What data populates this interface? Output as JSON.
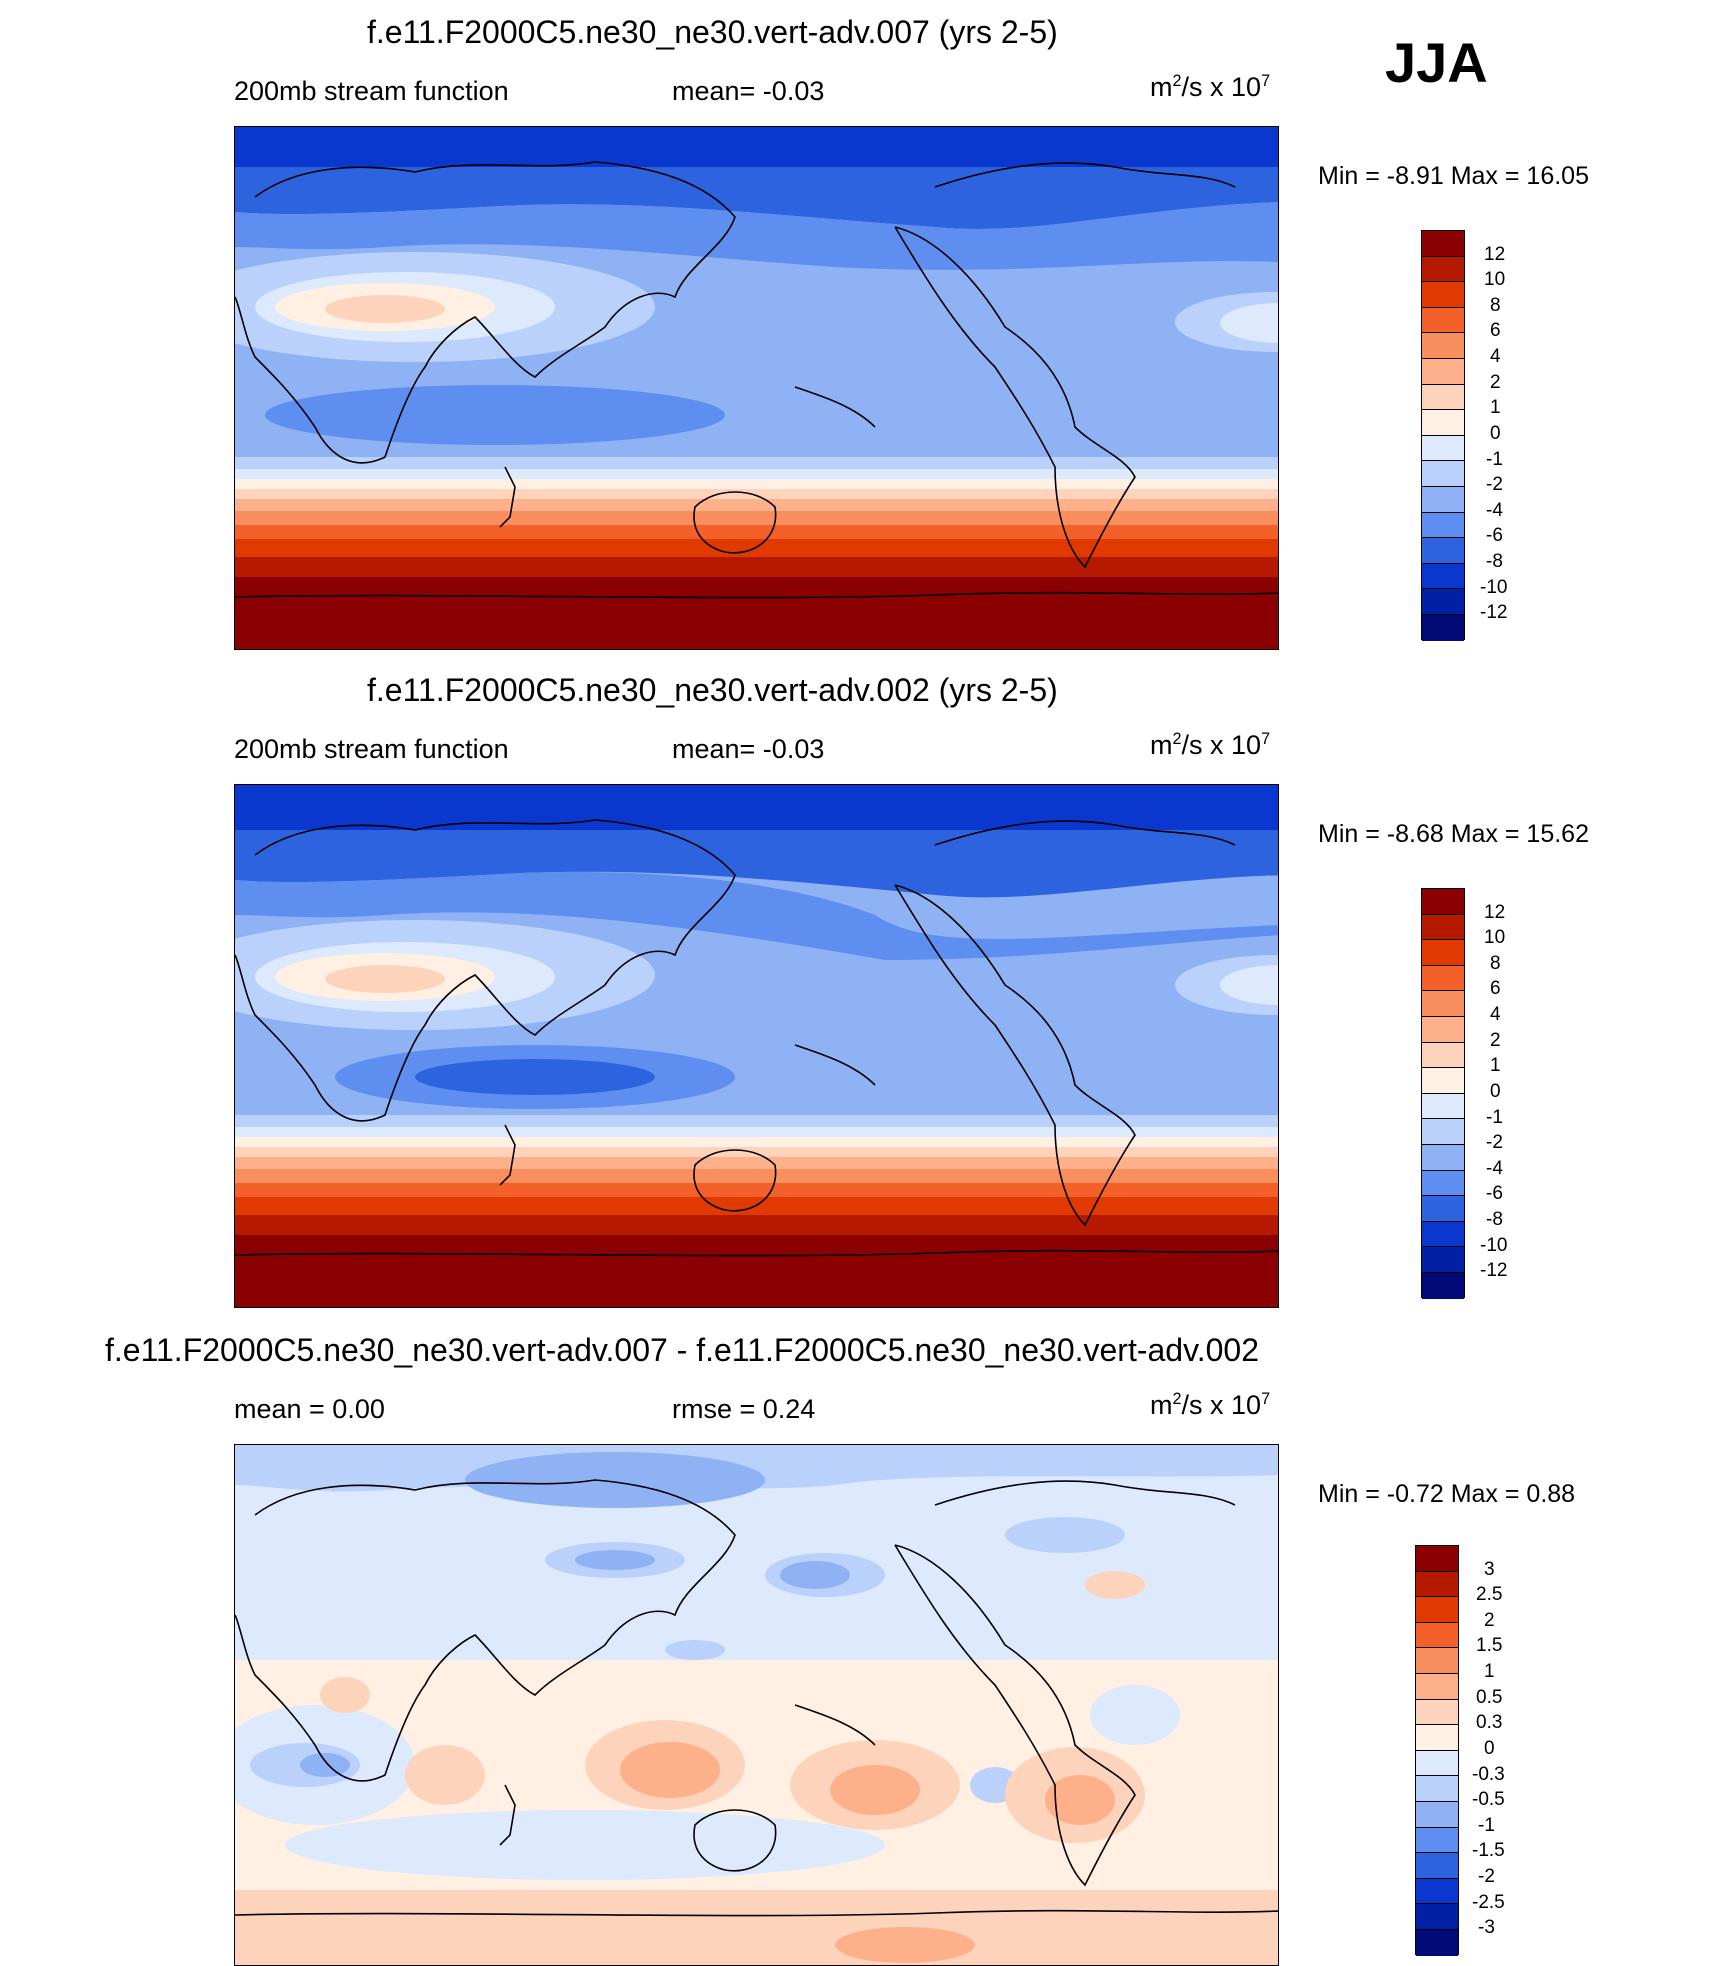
{
  "season": "JJA",
  "panels": [
    {
      "title": "f.e11.F2000C5.ne30_ne30.vert-adv.007 (yrs 2-5)",
      "left": "200mb stream function",
      "center": "mean=  -0.03",
      "units_base": "m",
      "units_exp": "2",
      "units_mid": "/s x 10",
      "units_pow": "7",
      "minmax": "Min =  -8.91 Max =  16.05",
      "levels": [
        "12",
        "10",
        "8",
        "6",
        "4",
        "2",
        "1",
        "0",
        "-1",
        "-2",
        "-4",
        "-6",
        "-8",
        "-10",
        "-12"
      ],
      "colors": [
        "#8b0000",
        "#b51a00",
        "#e03a00",
        "#f4602a",
        "#f98f5e",
        "#fdb08a",
        "#fdd4bb",
        "#fff0e3",
        "#dde9fd",
        "#b9d1fb",
        "#8fb2f5",
        "#5e8ff0",
        "#2e63e0",
        "#0a38cf",
        "#0020a5",
        "#000b78"
      ]
    },
    {
      "title": "f.e11.F2000C5.ne30_ne30.vert-adv.002 (yrs 2-5)",
      "left": "200mb stream function",
      "center": "mean=  -0.03",
      "units_base": "m",
      "units_exp": "2",
      "units_mid": "/s x 10",
      "units_pow": "7",
      "minmax": "Min =  -8.68 Max =  15.62",
      "levels": [
        "12",
        "10",
        "8",
        "6",
        "4",
        "2",
        "1",
        "0",
        "-1",
        "-2",
        "-4",
        "-6",
        "-8",
        "-10",
        "-12"
      ],
      "colors": [
        "#8b0000",
        "#b51a00",
        "#e03a00",
        "#f4602a",
        "#f98f5e",
        "#fdb08a",
        "#fdd4bb",
        "#fff0e3",
        "#dde9fd",
        "#b9d1fb",
        "#8fb2f5",
        "#5e8ff0",
        "#2e63e0",
        "#0a38cf",
        "#0020a5",
        "#000b78"
      ]
    },
    {
      "title": "f.e11.F2000C5.ne30_ne30.vert-adv.007 - f.e11.F2000C5.ne30_ne30.vert-adv.002",
      "left": "mean =   0.00",
      "center": "rmse =   0.24",
      "units_base": "m",
      "units_exp": "2",
      "units_mid": "/s x 10",
      "units_pow": "7",
      "minmax": "Min =  -0.72 Max =   0.88",
      "levels": [
        "3",
        "2.5",
        "2",
        "1.5",
        "1",
        "0.5",
        "0.3",
        "0",
        "-0.3",
        "-0.5",
        "-1",
        "-1.5",
        "-2",
        "-2.5",
        "-3"
      ],
      "colors": [
        "#8b0000",
        "#b51a00",
        "#e03a00",
        "#f4602a",
        "#f98f5e",
        "#fdb08a",
        "#fdd4bb",
        "#fff0e3",
        "#dde9fd",
        "#b9d1fb",
        "#8fb2f5",
        "#5e8ff0",
        "#2e63e0",
        "#0a38cf",
        "#0020a5",
        "#000b78"
      ]
    }
  ]
}
